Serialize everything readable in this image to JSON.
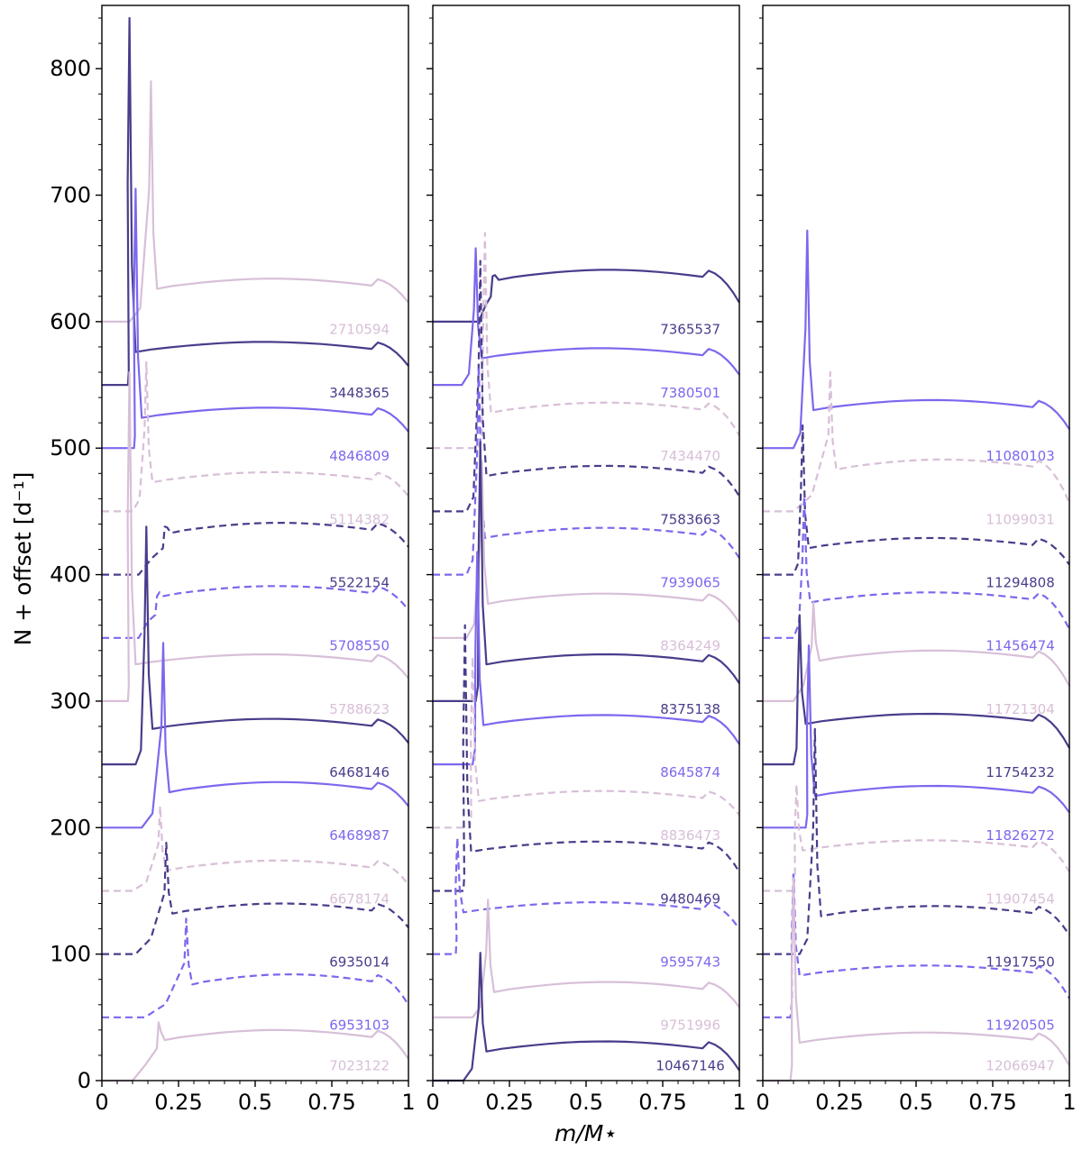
{
  "chart_data": {
    "type": "line",
    "xlabel": "m/M⋆",
    "ylabel": "N + offset [d⁻¹]",
    "xlim": [
      0,
      1
    ],
    "ylim": [
      0,
      850
    ],
    "x_ticks": [
      "0",
      "0.25",
      "0.5",
      "0.75",
      "1"
    ],
    "x_tick_values": [
      0,
      0.25,
      0.5,
      0.75,
      1
    ],
    "y_ticks": [
      "0",
      "100",
      "200",
      "300",
      "400",
      "500",
      "600",
      "700",
      "800"
    ],
    "y_tick_values": [
      0,
      100,
      200,
      300,
      400,
      500,
      600,
      700,
      800
    ],
    "colors": {
      "dark": "#483d8b",
      "medium": "#7b68ee",
      "light": "#d8bfd8"
    },
    "panels": [
      {
        "series": [
          {
            "name": "2710594",
            "offset": 600,
            "color": "light",
            "dashed": false,
            "x_rise": 0.09,
            "x_peak": 0.16,
            "peak": 790,
            "plateau": 630,
            "end": 615,
            "label_y": 588
          },
          {
            "name": "3448365",
            "offset": 550,
            "color": "dark",
            "dashed": false,
            "x_rise": 0.085,
            "x_peak": 0.09,
            "peak": 840,
            "plateau": 580,
            "end": 565,
            "label_y": 538
          },
          {
            "name": "4846809",
            "offset": 500,
            "color": "medium",
            "dashed": false,
            "x_rise": 0.105,
            "x_peak": 0.11,
            "peak": 705,
            "plateau": 528,
            "end": 513,
            "label_y": 488
          },
          {
            "name": "5114382",
            "offset": 450,
            "color": "light",
            "dashed": true,
            "x_rise": 0.1,
            "x_peak": 0.145,
            "peak": 568,
            "plateau": 477,
            "end": 462,
            "label_y": 438
          },
          {
            "name": "5522154",
            "offset": 400,
            "color": "dark",
            "dashed": true,
            "x_rise": 0.12,
            "x_peak": 0.205,
            "peak": 438,
            "plateau": 437,
            "end": 422,
            "label_y": 388
          },
          {
            "name": "5708550",
            "offset": 350,
            "color": "medium",
            "dashed": true,
            "x_rise": 0.12,
            "x_peak": 0.18,
            "peak": 383,
            "plateau": 387,
            "end": 372,
            "label_y": 338
          },
          {
            "name": "5788623",
            "offset": 300,
            "color": "light",
            "dashed": false,
            "x_rise": 0.085,
            "x_peak": 0.09,
            "peak": 560,
            "plateau": 333,
            "end": 318,
            "label_y": 288
          },
          {
            "name": "6468146",
            "offset": 250,
            "color": "dark",
            "dashed": false,
            "x_rise": 0.11,
            "x_peak": 0.145,
            "peak": 438,
            "plateau": 282,
            "end": 267,
            "label_y": 238
          },
          {
            "name": "6468987",
            "offset": 200,
            "color": "medium",
            "dashed": false,
            "x_rise": 0.13,
            "x_peak": 0.2,
            "peak": 346,
            "plateau": 232,
            "end": 217,
            "label_y": 188
          },
          {
            "name": "6678174",
            "offset": 150,
            "color": "light",
            "dashed": true,
            "x_rise": 0.1,
            "x_peak": 0.19,
            "peak": 217,
            "plateau": 170,
            "end": 155,
            "label_y": 138
          },
          {
            "name": "6935014",
            "offset": 100,
            "color": "dark",
            "dashed": true,
            "x_rise": 0.11,
            "x_peak": 0.21,
            "peak": 188,
            "plateau": 136,
            "end": 121,
            "label_y": 88
          },
          {
            "name": "6953103",
            "offset": 50,
            "color": "medium",
            "dashed": true,
            "x_rise": 0.14,
            "x_peak": 0.275,
            "peak": 128,
            "plateau": 80,
            "end": 60,
            "label_y": 38
          },
          {
            "name": "7023122",
            "offset": 0,
            "color": "light",
            "dashed": false,
            "x_rise": 0.1,
            "x_peak": 0.185,
            "peak": 46,
            "plateau": 36,
            "end": 17,
            "label_y": 6
          }
        ]
      },
      {
        "series": [
          {
            "name": "7365537",
            "offset": 600,
            "color": "dark",
            "dashed": false,
            "x_rise": 0.15,
            "x_peak": 0.195,
            "peak": 636,
            "plateau": 637,
            "end": 615,
            "label_y": 588
          },
          {
            "name": "7380501",
            "offset": 550,
            "color": "medium",
            "dashed": false,
            "x_rise": 0.095,
            "x_peak": 0.14,
            "peak": 658,
            "plateau": 575,
            "end": 558,
            "label_y": 538
          },
          {
            "name": "7434470",
            "offset": 500,
            "color": "light",
            "dashed": true,
            "x_rise": 0.15,
            "x_peak": 0.17,
            "peak": 670,
            "plateau": 532,
            "end": 510,
            "label_y": 488
          },
          {
            "name": "7583663",
            "offset": 450,
            "color": "dark",
            "dashed": true,
            "x_rise": 0.11,
            "x_peak": 0.155,
            "peak": 648,
            "plateau": 482,
            "end": 462,
            "label_y": 438
          },
          {
            "name": "7939065",
            "offset": 400,
            "color": "medium",
            "dashed": true,
            "x_rise": 0.11,
            "x_peak": 0.15,
            "peak": 565,
            "plateau": 433,
            "end": 413,
            "label_y": 388
          },
          {
            "name": "8364249",
            "offset": 350,
            "color": "light",
            "dashed": false,
            "x_rise": 0.11,
            "x_peak": 0.16,
            "peak": 490,
            "plateau": 381,
            "end": 362,
            "label_y": 338
          },
          {
            "name": "8375138",
            "offset": 300,
            "color": "dark",
            "dashed": false,
            "x_rise": 0.14,
            "x_peak": 0.155,
            "peak": 505,
            "plateau": 333,
            "end": 314,
            "label_y": 288
          },
          {
            "name": "8645874",
            "offset": 250,
            "color": "medium",
            "dashed": false,
            "x_rise": 0.13,
            "x_peak": 0.145,
            "peak": 418,
            "plateau": 285,
            "end": 266,
            "label_y": 238
          },
          {
            "name": "8836473",
            "offset": 200,
            "color": "light",
            "dashed": true,
            "x_rise": 0.12,
            "x_peak": 0.13,
            "peak": 335,
            "plateau": 225,
            "end": 210,
            "label_y": 188
          },
          {
            "name": "9480469",
            "offset": 150,
            "color": "dark",
            "dashed": true,
            "x_rise": 0.1,
            "x_peak": 0.105,
            "peak": 360,
            "plateau": 185,
            "end": 165,
            "label_y": 138
          },
          {
            "name": "9595743",
            "offset": 100,
            "color": "medium",
            "dashed": true,
            "x_rise": 0.075,
            "x_peak": 0.08,
            "peak": 192,
            "plateau": 137,
            "end": 120,
            "label_y": 88
          },
          {
            "name": "9751996",
            "offset": 50,
            "color": "light",
            "dashed": false,
            "x_rise": 0.13,
            "x_peak": 0.18,
            "peak": 143,
            "plateau": 74,
            "end": 58,
            "label_y": 38
          },
          {
            "name": "10467146",
            "offset": 0,
            "color": "dark",
            "dashed": false,
            "x_rise": 0.1,
            "x_peak": 0.155,
            "peak": 101,
            "plateau": 27,
            "end": 8,
            "label_y": 6
          }
        ]
      },
      {
        "series": [
          {
            "name": "11080103",
            "offset": 500,
            "color": "medium",
            "dashed": false,
            "x_rise": 0.1,
            "x_peak": 0.145,
            "peak": 672,
            "plateau": 534,
            "end": 515,
            "label_y": 488
          },
          {
            "name": "11099031",
            "offset": 450,
            "color": "light",
            "dashed": true,
            "x_rise": 0.1,
            "x_peak": 0.22,
            "peak": 560,
            "plateau": 487,
            "end": 457,
            "label_y": 438
          },
          {
            "name": "11294808",
            "offset": 400,
            "color": "dark",
            "dashed": true,
            "x_rise": 0.1,
            "x_peak": 0.13,
            "peak": 518,
            "plateau": 425,
            "end": 408,
            "label_y": 388
          },
          {
            "name": "11456474",
            "offset": 350,
            "color": "medium",
            "dashed": true,
            "x_rise": 0.1,
            "x_peak": 0.135,
            "peak": 462,
            "plateau": 382,
            "end": 357,
            "label_y": 338
          },
          {
            "name": "11721304",
            "offset": 300,
            "color": "light",
            "dashed": false,
            "x_rise": 0.1,
            "x_peak": 0.165,
            "peak": 378,
            "plateau": 336,
            "end": 312,
            "label_y": 288
          },
          {
            "name": "11754232",
            "offset": 250,
            "color": "dark",
            "dashed": false,
            "x_rise": 0.1,
            "x_peak": 0.12,
            "peak": 368,
            "plateau": 286,
            "end": 263,
            "label_y": 238
          },
          {
            "name": "11826272",
            "offset": 200,
            "color": "medium",
            "dashed": false,
            "x_rise": 0.14,
            "x_peak": 0.15,
            "peak": 344,
            "plateau": 229,
            "end": 212,
            "label_y": 188
          },
          {
            "name": "11907454",
            "offset": 150,
            "color": "light",
            "dashed": true,
            "x_rise": 0.1,
            "x_peak": 0.11,
            "peak": 234,
            "plateau": 186,
            "end": 165,
            "label_y": 138
          },
          {
            "name": "11917550",
            "offset": 100,
            "color": "dark",
            "dashed": true,
            "x_rise": 0.12,
            "x_peak": 0.17,
            "peak": 278,
            "plateau": 134,
            "end": 115,
            "label_y": 88
          },
          {
            "name": "11920505",
            "offset": 50,
            "color": "medium",
            "dashed": true,
            "x_rise": 0.09,
            "x_peak": 0.1,
            "peak": 165,
            "plateau": 87,
            "end": 65,
            "label_y": 38
          },
          {
            "name": "12066947",
            "offset": 0,
            "color": "light",
            "dashed": false,
            "x_rise": 0.09,
            "x_peak": 0.1,
            "peak": 160,
            "plateau": 34,
            "end": 12,
            "label_y": 6
          }
        ]
      }
    ]
  }
}
